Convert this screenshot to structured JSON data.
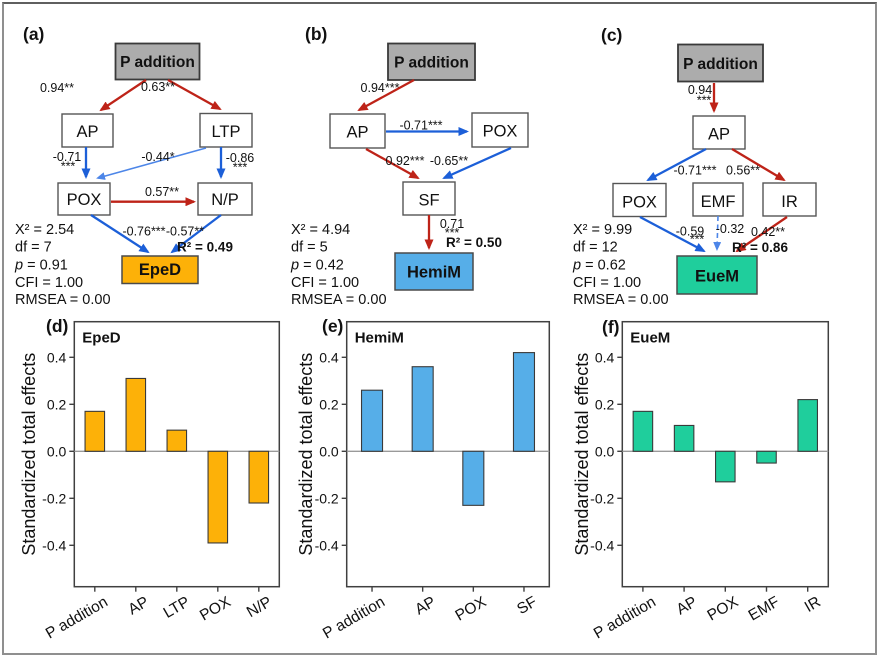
{
  "colors": {
    "source_box_fill": "#acacac",
    "outcome_eped": "#fdb108",
    "outcome_hemim": "#56aee8",
    "outcome_euem": "#1fce9c",
    "positive_path": "#be2318",
    "negative_path": "#1c5fd8",
    "negative_path_light": "#4d86e8"
  },
  "sem": {
    "a": {
      "label": "(a)",
      "nodes": {
        "source": "P addition",
        "ap": "AP",
        "ltp": "LTP",
        "pox": "POX",
        "np": "N/P",
        "outcome": "EpeD"
      },
      "edges": {
        "pa_ap": "0.94**",
        "pa_ltp": "0.63**",
        "ap_pox": "-0.71",
        "ap_pox_stars": "***",
        "ltp_pox": "-0.44*",
        "ltp_np": "-0.86",
        "ltp_np_stars": "***",
        "pox_np": "0.57**",
        "pox_outcome": "-0.76***",
        "np_outcome": "-0.57**"
      },
      "r2": "R² = 0.49",
      "fit": {
        "chi": "X² = 2.54",
        "df": "df = 7",
        "p_label": "p",
        "p_value": " = 0.91",
        "cfi": "CFI = 1.00",
        "rmsea": "RMSEA = 0.00"
      }
    },
    "b": {
      "label": "(b)",
      "nodes": {
        "source": "P addition",
        "ap": "AP",
        "pox": "POX",
        "sf": "SF",
        "outcome": "HemiM"
      },
      "edges": {
        "pa_ap": "0.94***",
        "ap_pox": "-0.71***",
        "ap_sf": "0.92***",
        "pox_sf": "-0.65**",
        "sf_outcome": "0.71",
        "sf_outcome_stars": "***"
      },
      "r2": "R² = 0.50",
      "fit": {
        "chi": "X² = 4.94",
        "df": "df = 5",
        "p_label": "p",
        "p_value": " = 0.42",
        "cfi": "CFI = 1.00",
        "rmsea": "RMSEA = 0.00"
      }
    },
    "c": {
      "label": "(c)",
      "nodes": {
        "source": "P addition",
        "ap": "AP",
        "pox": "POX",
        "emf": "EMF",
        "ir": "IR",
        "outcome": "EueM"
      },
      "edges": {
        "pa_ap": "0.94",
        "pa_ap_stars": "***",
        "ap_pox": "-0.71***",
        "ap_ir": "0.56**",
        "pox_outcome": "-0.59",
        "pox_outcome_stars": "***",
        "emf_outcome": "-0.32",
        "ir_outcome": "0.42**"
      },
      "r2": "R² = 0.86",
      "fit": {
        "chi": "X² = 9.99",
        "df": "df = 12",
        "p_label": "p",
        "p_value": " = 0.62",
        "cfi": "CFI = 1.00",
        "rmsea": "RMSEA = 0.00"
      }
    }
  },
  "chart_data": [
    {
      "type": "bar",
      "panel_label": "(d)",
      "title": "EpeD",
      "categories": [
        "P addition",
        "AP",
        "LTP",
        "POX",
        "N/P"
      ],
      "values": [
        0.17,
        0.31,
        0.09,
        -0.39,
        -0.22
      ],
      "ylabel": "Standardized total effects",
      "ytick_labels": [
        "0.4",
        "0.2",
        "0.0",
        "-0.2",
        "-0.4"
      ],
      "ylim": [
        -0.58,
        0.55
      ],
      "bar_color": "#fdb108",
      "grid": false,
      "legend": false
    },
    {
      "type": "bar",
      "panel_label": "(e)",
      "title": "HemiM",
      "categories": [
        "P addition",
        "AP",
        "POX",
        "SF"
      ],
      "values": [
        0.26,
        0.36,
        -0.23,
        0.42
      ],
      "ylabel": "Standardized total effects",
      "ytick_labels": [
        "0.4",
        "0.2",
        "0.0",
        "-0.2",
        "-0.4"
      ],
      "ylim": [
        -0.58,
        0.55
      ],
      "bar_color": "#56aee8",
      "grid": false,
      "legend": false
    },
    {
      "type": "bar",
      "panel_label": "(f)",
      "title": "EueM",
      "categories": [
        "P addition",
        "AP",
        "POX",
        "EMF",
        "IR"
      ],
      "values": [
        0.17,
        0.11,
        -0.13,
        -0.05,
        0.22
      ],
      "ylabel": "Standardized total effects",
      "ytick_labels": [
        "0.4",
        "0.2",
        "0.0",
        "-0.2",
        "-0.4"
      ],
      "ylim": [
        -0.58,
        0.55
      ],
      "bar_color": "#1fce9c",
      "grid": false,
      "legend": false
    }
  ]
}
